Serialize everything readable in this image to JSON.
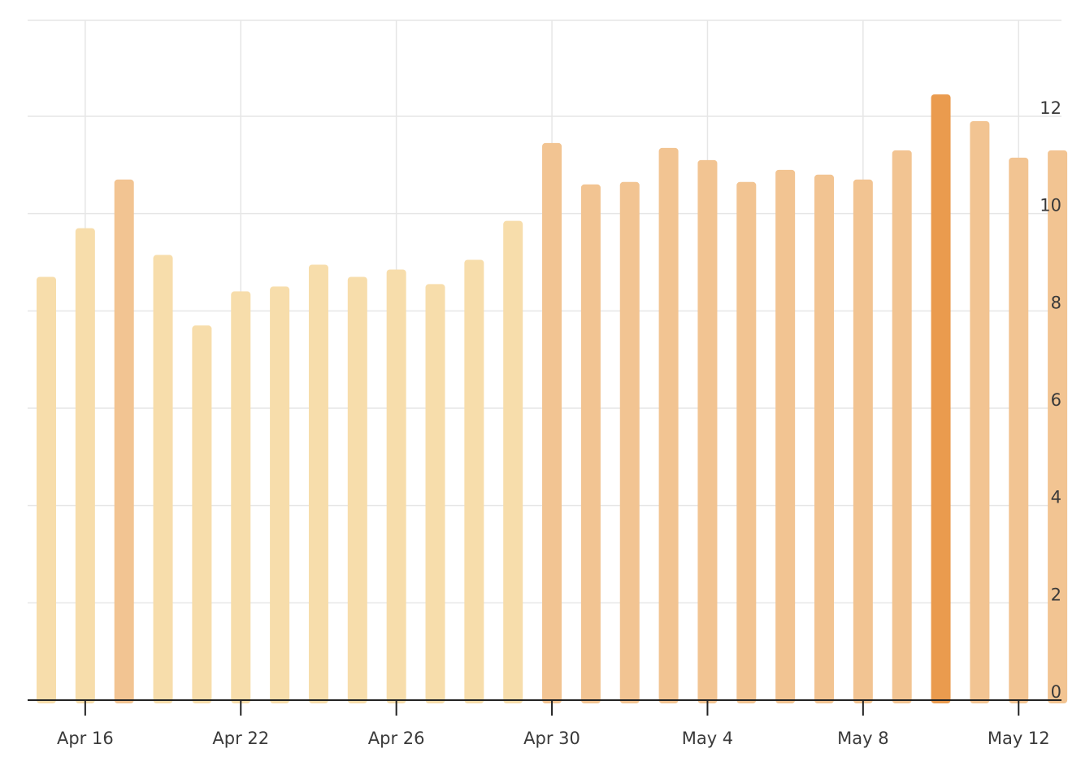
{
  "chart_data": {
    "type": "bar",
    "x_tick_labels": [
      "Apr 16",
      "Apr 22",
      "Apr 26",
      "Apr 30",
      "May 4",
      "May 8",
      "May 12"
    ],
    "y_ticks": [
      0,
      2,
      4,
      6,
      8,
      10,
      12
    ],
    "ylim": [
      0,
      14
    ],
    "y_axis_position": "right",
    "grid": true,
    "bars": [
      {
        "value": 8.7,
        "color": "#f7ddab"
      },
      {
        "value": 9.7,
        "color": "#f7ddab"
      },
      {
        "value": 10.7,
        "color": "#f2c492"
      },
      {
        "value": 9.15,
        "color": "#f7ddab"
      },
      {
        "value": 7.7,
        "color": "#f7ddab"
      },
      {
        "value": 8.4,
        "color": "#f7ddab"
      },
      {
        "value": 8.5,
        "color": "#f7ddab"
      },
      {
        "value": 8.95,
        "color": "#f7ddab"
      },
      {
        "value": 8.7,
        "color": "#f7ddab"
      },
      {
        "value": 8.85,
        "color": "#f7ddab"
      },
      {
        "value": 8.55,
        "color": "#f7ddab"
      },
      {
        "value": 9.05,
        "color": "#f7ddab"
      },
      {
        "value": 9.85,
        "color": "#f7ddab"
      },
      {
        "value": 11.45,
        "color": "#f2c492"
      },
      {
        "value": 10.6,
        "color": "#f2c492"
      },
      {
        "value": 10.65,
        "color": "#f2c492"
      },
      {
        "value": 11.35,
        "color": "#f2c492"
      },
      {
        "value": 11.1,
        "color": "#f2c492"
      },
      {
        "value": 10.65,
        "color": "#f2c492"
      },
      {
        "value": 10.9,
        "color": "#f2c492"
      },
      {
        "value": 10.8,
        "color": "#f2c492"
      },
      {
        "value": 10.7,
        "color": "#f2c492"
      },
      {
        "value": 11.3,
        "color": "#f2c492"
      },
      {
        "value": 12.45,
        "color": "#ea9b4e"
      },
      {
        "value": 11.9,
        "color": "#f2c492"
      },
      {
        "value": 11.15,
        "color": "#f2c492"
      },
      {
        "value": 11.3,
        "color": "#f2c492"
      }
    ]
  },
  "style": {
    "grid_color": "#e6e6e6",
    "axis_color": "#222222",
    "label_color": "#3a3a3a"
  }
}
